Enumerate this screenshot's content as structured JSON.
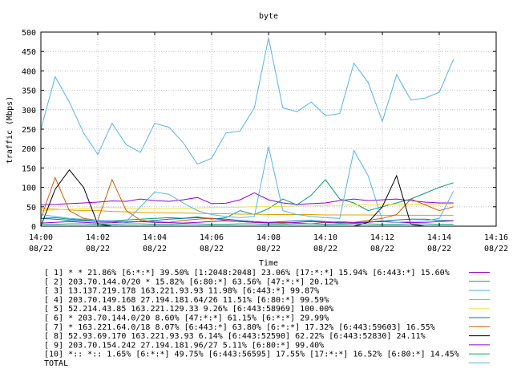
{
  "chart_data": {
    "type": "line",
    "title": "byte",
    "xlabel": "Time",
    "ylabel": "traffic (Mbps)",
    "ylim": [
      0,
      500
    ],
    "yticks": [
      0,
      50,
      100,
      150,
      200,
      250,
      300,
      350,
      400,
      450,
      500
    ],
    "yticklabels": [
      "0",
      "50",
      "100",
      "150",
      "200",
      "250",
      "300",
      "350",
      "400",
      "450",
      "500"
    ],
    "xlim": [
      "14:00",
      "14:16"
    ],
    "xticks": [
      "14:00",
      "14:02",
      "14:04",
      "14:06",
      "14:08",
      "14:10",
      "14:12",
      "14:14",
      "14:16"
    ],
    "xticklabels": [
      {
        "time": "14:00",
        "date": "08/22"
      },
      {
        "time": "14:02",
        "date": "08/22"
      },
      {
        "time": "14:04",
        "date": "08/22"
      },
      {
        "time": "14:06",
        "date": "08/22"
      },
      {
        "time": "14:08",
        "date": "08/22"
      },
      {
        "time": "14:10",
        "date": "08/22"
      },
      {
        "time": "14:12",
        "date": "08/22"
      },
      {
        "time": "14:14",
        "date": "08/22"
      },
      {
        "time": "14:16",
        "date": "08/22"
      }
    ],
    "grid": true,
    "legend_position": "bottom",
    "x": [
      "14:00:00",
      "14:00:30",
      "14:01:00",
      "14:01:30",
      "14:02:00",
      "14:02:30",
      "14:03:00",
      "14:03:30",
      "14:04:00",
      "14:04:30",
      "14:05:00",
      "14:05:30",
      "14:06:00",
      "14:06:30",
      "14:07:00",
      "14:07:30",
      "14:08:00",
      "14:08:30",
      "14:09:00",
      "14:09:30",
      "14:10:00",
      "14:10:30",
      "14:11:00",
      "14:11:30",
      "14:12:00",
      "14:12:30",
      "14:13:00",
      "14:13:30",
      "14:14:00",
      "14:14:30"
    ],
    "series": [
      {
        "name": "[ 1] * * 21.86%  [6:*:*] 39.50% [1:2048:2048] 23.06% [17:*:*] 15.94% [6:443:*] 15.60%",
        "color": "#9400d3",
        "values": [
          55,
          56,
          58,
          60,
          62,
          65,
          64,
          70,
          66,
          64,
          68,
          74,
          58,
          59,
          68,
          86,
          68,
          60,
          56,
          58,
          60,
          66,
          70,
          66,
          68,
          70,
          66,
          62,
          60,
          60
        ]
      },
      {
        "name": "[ 2] 203.70.144.0/20 * 15.82%  [6:80:*] 63.56% [47:*:*] 20.12%",
        "color": "#009e73",
        "values": [
          20,
          22,
          18,
          16,
          15,
          14,
          16,
          18,
          20,
          22,
          20,
          24,
          18,
          22,
          40,
          30,
          45,
          70,
          55,
          80,
          120,
          70,
          60,
          40,
          50,
          60,
          70,
          85,
          100,
          112
        ]
      },
      {
        "name": "[ 3] 13.137.219.178 163.221.93.93 11.98%  [6:443:*] 99.87%",
        "color": "#56b4e9",
        "values": [
          250,
          385,
          320,
          240,
          185,
          265,
          210,
          190,
          265,
          255,
          215,
          160,
          175,
          240,
          245,
          305,
          485,
          305,
          295,
          320,
          285,
          290,
          420,
          370,
          270,
          390,
          325,
          330,
          345,
          430
        ]
      },
      {
        "name": "[ 4] 203.70.149.168 27.194.181.64/26 11.51%  [6:80:*] 99.59%",
        "color": "#e69f00",
        "values": [
          45,
          44,
          42,
          40,
          40,
          38,
          37,
          36,
          35,
          34,
          34,
          33,
          32,
          32,
          31,
          31,
          30,
          30,
          30,
          30,
          29,
          29,
          29,
          29,
          28,
          28,
          28,
          28,
          28,
          28
        ]
      },
      {
        "name": "[ 5] 52.214.43.85 163.221.129.33 9.26%  [6:443:58969] 100.00%",
        "color": "#f0e442",
        "values": [
          40,
          42,
          44,
          46,
          48,
          48,
          47,
          46,
          45,
          45,
          46,
          47,
          48,
          48,
          49,
          50,
          50,
          51,
          52,
          52,
          53,
          54,
          55,
          55,
          56,
          56,
          56,
          57,
          57,
          57
        ]
      },
      {
        "name": "[ 6] * 203.70.144.0/20 8.60%  [47:*:*] 61.15% [6:*:*] 29.99%",
        "color": "#0072b2",
        "values": [
          20,
          18,
          15,
          14,
          12,
          12,
          10,
          12,
          15,
          18,
          20,
          22,
          20,
          18,
          15,
          12,
          10,
          12,
          14,
          15,
          12,
          10,
          8,
          10,
          14,
          16,
          18,
          18,
          15,
          14
        ]
      },
      {
        "name": "[ 7] * 163.221.64.0/18 8.07%  [6:443:*] 63.80% [6:*:*] 17.32% [6:443:59603] 16.55%",
        "color": "#d55e00",
        "values": [
          20,
          125,
          40,
          20,
          15,
          120,
          40,
          15,
          12,
          10,
          15,
          18,
          20,
          15,
          12,
          10,
          8,
          10,
          8,
          6,
          10,
          12,
          10,
          15,
          20,
          30,
          70,
          55,
          40,
          50
        ]
      },
      {
        "name": "[ 8] 52.93.69.170 163.221.93.93 6.14%  [6:443:52590] 62.22% [6:443:52830] 24.11%",
        "color": "#000000",
        "values": [
          0,
          95,
          145,
          100,
          5,
          0,
          0,
          0,
          0,
          0,
          0,
          0,
          0,
          0,
          0,
          0,
          0,
          0,
          0,
          0,
          0,
          0,
          0,
          10,
          50,
          130,
          5,
          0,
          0,
          0
        ]
      },
      {
        "name": "[ 9] 203.70.154.242 27.194.181.96/27 5.11%  [6:80:*] 99.40%",
        "color": "#9400d3",
        "values": [
          8,
          10,
          12,
          10,
          8,
          9,
          11,
          12,
          10,
          9,
          8,
          10,
          12,
          14,
          12,
          10,
          9,
          8,
          10,
          12,
          10,
          8,
          9,
          11,
          12,
          10,
          9,
          10,
          12,
          14
        ]
      },
      {
        "name": "[10] *:: *:: 1.65%  [6:*:*] 49.75% [6:443:56595] 17.55% [17:*:*] 16.52% [6:80:*] 14.45%",
        "color": "#009e73",
        "values": [
          5,
          5,
          6,
          6,
          5,
          5,
          6,
          6,
          5,
          5,
          6,
          6,
          5,
          5,
          6,
          6,
          5,
          5,
          6,
          6,
          5,
          5,
          6,
          6,
          5,
          5,
          6,
          6,
          5,
          5
        ]
      },
      {
        "name": "TOTAL",
        "color": "#56b4e9",
        "values": [
          30,
          25,
          20,
          18,
          15,
          14,
          12,
          50,
          88,
          82,
          60,
          40,
          30,
          25,
          22,
          25,
          205,
          40,
          30,
          25,
          22,
          20,
          195,
          130,
          15,
          10,
          12,
          14,
          20,
          90
        ]
      }
    ]
  }
}
